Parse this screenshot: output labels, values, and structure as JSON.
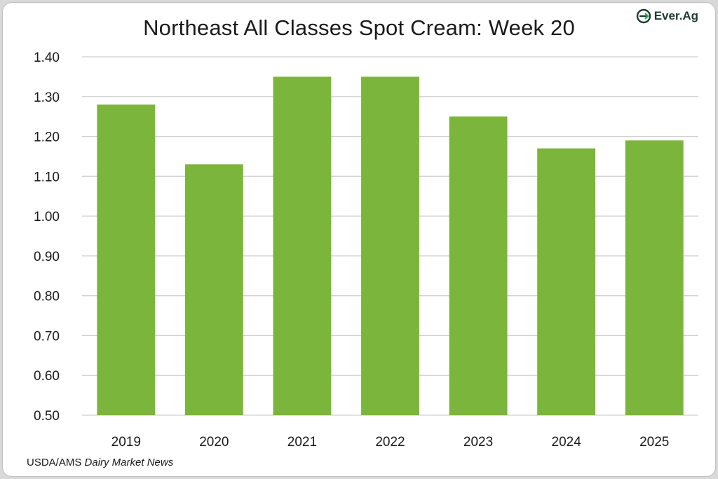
{
  "title": "Northeast All Classes Spot Cream: Week 20",
  "logo": {
    "text": "Ever.Ag",
    "icon": "ever-ag-logo-icon",
    "color": "#1e3b30",
    "accent": "#3aa85a"
  },
  "source": {
    "prefix": "USDA/AMS ",
    "italic": "Dairy Market News"
  },
  "chart_data": {
    "type": "bar",
    "title": "Northeast All Classes Spot Cream: Week 20",
    "categories": [
      "2019",
      "2020",
      "2021",
      "2022",
      "2023",
      "2024",
      "2025"
    ],
    "values": [
      1.28,
      1.13,
      1.35,
      1.35,
      1.25,
      1.17,
      1.19
    ],
    "ylim": [
      0.5,
      1.4
    ],
    "yticks": [
      "0.50",
      "0.60",
      "0.70",
      "0.80",
      "0.90",
      "1.00",
      "1.10",
      "1.20",
      "1.30",
      "1.40"
    ],
    "xlabel": "",
    "ylabel": "",
    "grid": true,
    "legend": "none",
    "bar_color": "#7cb53b",
    "grid_color": "#d0d0d0"
  }
}
